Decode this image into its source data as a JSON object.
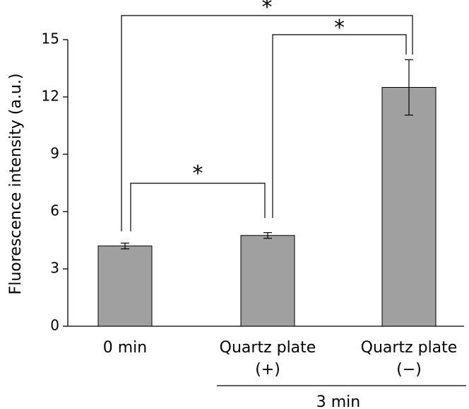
{
  "chart_data": {
    "type": "bar",
    "title": "",
    "xlabel": "",
    "ylabel": "Fluorescence intensity (a.u.)",
    "ylim": [
      0,
      15
    ],
    "yticks": [
      "0",
      "3",
      "6",
      "9",
      "12",
      "15"
    ],
    "grid": false,
    "categories": [
      {
        "line1": "0 min",
        "line2": ""
      },
      {
        "line1": "Quartz plate",
        "line2": "(+)"
      },
      {
        "line1": "Quartz plate",
        "line2": "(−)"
      }
    ],
    "values": [
      4.2,
      4.75,
      12.5
    ],
    "errors": [
      0.15,
      0.15,
      1.45
    ],
    "bar_color": "#a0a0a0",
    "group_label": "3 min",
    "group_categories": [
      1,
      2
    ],
    "significance": [
      {
        "from": 0,
        "to": 1,
        "label": "*"
      },
      {
        "from": 1,
        "to": 2,
        "label": "*"
      },
      {
        "from": 0,
        "to": 2,
        "label": "*"
      }
    ]
  }
}
